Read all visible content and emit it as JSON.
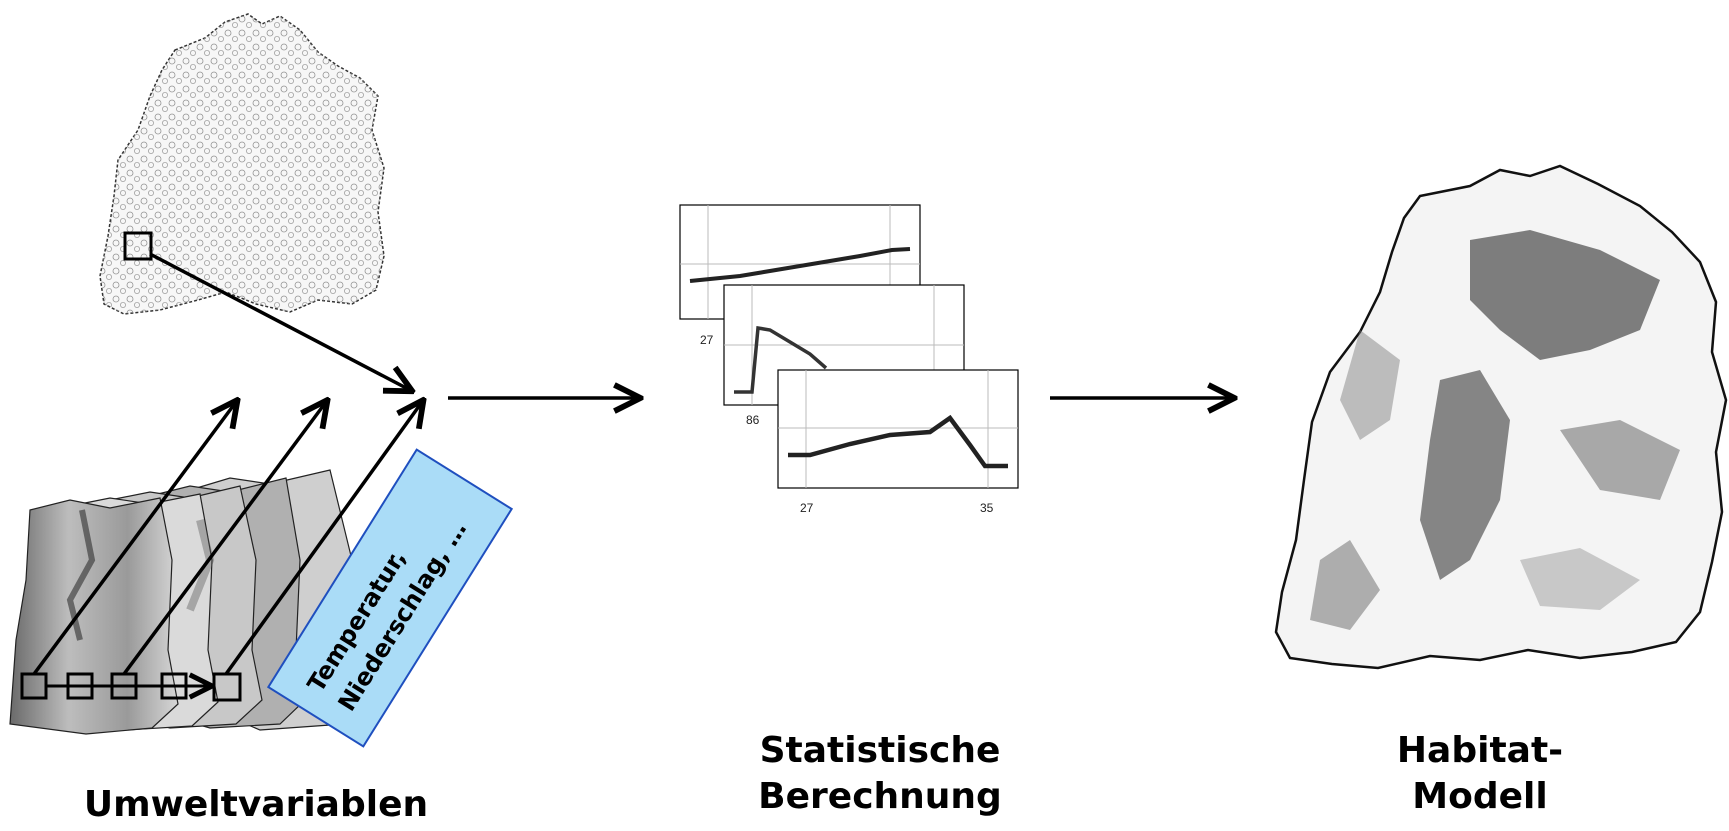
{
  "captions": {
    "inputs": "Umweltvariablen",
    "stats_line1": "Statistische",
    "stats_line2": "Berechnung",
    "model_line1": "Habitat-",
    "model_line2": "Modell"
  },
  "variable_box": {
    "line1": "Temperatur,",
    "line2": "Niederschlag, …"
  },
  "response_curves": [
    {
      "tick_x_left": "27",
      "tick_x_right": ""
    },
    {
      "tick_x_left": "86",
      "tick_x_right": ""
    },
    {
      "tick_x_left": "27",
      "tick_x_right": "35"
    }
  ],
  "colors": {
    "variable_box_fill": "#aadcf7",
    "variable_box_border": "#1f4fbf",
    "habitat_dark": "#555555"
  }
}
